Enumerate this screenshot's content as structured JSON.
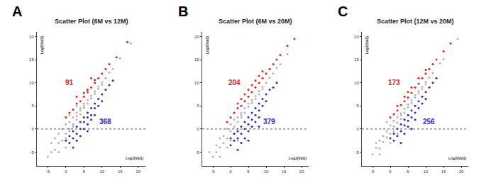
{
  "chart_data": [
    {
      "type": "scatter",
      "panel": "A",
      "title": "Scatter Plot (6M vs 12M)",
      "xlabel": "Log2(Val1)",
      "ylabel": "Log2(Val2)",
      "xlim": [
        -8,
        22
      ],
      "ylim": [
        -8,
        21
      ],
      "xticks": [
        -5,
        0,
        5,
        10,
        15,
        20
      ],
      "yticks": [
        -5,
        0,
        5,
        10,
        15,
        20
      ],
      "grid": false,
      "series": [
        {
          "color": "#b4b4b4",
          "marker": "circle",
          "x": [
            -4,
            -3,
            -3,
            -2,
            -2,
            -1,
            -1,
            0,
            0,
            0,
            1,
            1,
            1,
            2,
            2,
            2,
            3,
            3,
            3,
            4,
            4,
            4,
            5,
            5,
            5,
            6,
            6,
            7,
            7,
            8,
            8,
            9,
            9,
            10,
            10,
            11,
            12,
            13,
            15,
            18,
            -5,
            -4,
            -2,
            0,
            1,
            3
          ],
          "values": [
            -5,
            -2,
            -4.5,
            -1,
            -3,
            0,
            -2.5,
            1,
            -1,
            -2,
            1.5,
            0,
            -0.5,
            2.5,
            1,
            0.5,
            3.5,
            2,
            2.8,
            4.5,
            3.2,
            4,
            5.5,
            4.6,
            5,
            6.3,
            5.5,
            7.2,
            6.6,
            8.1,
            7.6,
            9.2,
            8.7,
            10.1,
            9.6,
            11,
            12.2,
            13,
            15.3,
            18.5,
            -6,
            -3,
            -5,
            -4,
            3,
            5
          ]
        },
        {
          "color": "#e8211d",
          "marker": "circle",
          "x": [
            0,
            1,
            2,
            3,
            4,
            5,
            5,
            6,
            6,
            7,
            8,
            8,
            9,
            10,
            11,
            12,
            14,
            17,
            3,
            7
          ],
          "values": [
            2.5,
            3.5,
            4.2,
            5.5,
            6,
            7,
            7.8,
            8,
            8.5,
            9,
            10,
            10.6,
            11,
            12,
            13,
            14,
            15.5,
            18.8,
            7,
            11
          ]
        },
        {
          "color": "#2a2ad0",
          "marker": "circle",
          "x": [
            0,
            1,
            1,
            2,
            2,
            3,
            3,
            3,
            4,
            4,
            4,
            5,
            5,
            5,
            6,
            6,
            6,
            7,
            7,
            7,
            8,
            8,
            8,
            9,
            9,
            10,
            10,
            11,
            12,
            13,
            2,
            6
          ],
          "values": [
            -2.5,
            -1.5,
            -3,
            -0.5,
            -2,
            0.5,
            -1,
            -2.5,
            1.5,
            0,
            -1.5,
            2.5,
            1.5,
            0,
            3.5,
            2.5,
            1,
            4.5,
            3,
            2,
            5.5,
            4.5,
            3,
            6.5,
            5,
            7.5,
            6,
            8.5,
            9.5,
            10.5,
            -4,
            -0.5
          ]
        },
        {
          "type": "line",
          "line_style": "dotted",
          "color": "#555555",
          "x": [
            -8,
            22
          ],
          "values": [
            0,
            0
          ]
        }
      ],
      "annotations": [
        {
          "text": "91",
          "color": "#e8211d"
        },
        {
          "text": "368",
          "color": "#2a2ad0"
        }
      ]
    },
    {
      "type": "scatter",
      "panel": "B",
      "title": "Scatter Plot (6M vs 20M)",
      "xlabel": "Log2(Val1)",
      "ylabel": "Log2(Val2)",
      "xlim": [
        -8,
        22
      ],
      "ylim": [
        -8,
        21
      ],
      "xticks": [
        -5,
        0,
        5,
        10,
        15,
        20
      ],
      "yticks": [
        -5,
        0,
        5,
        10,
        15,
        20
      ],
      "grid": false,
      "series": [
        {
          "color": "#b4b4b4",
          "marker": "circle",
          "x": [
            -5,
            -4,
            -4,
            -3,
            -3,
            -2,
            -2,
            -1,
            -1,
            0,
            0,
            0,
            1,
            1,
            1,
            2,
            2,
            2,
            3,
            3,
            3,
            4,
            4,
            5,
            5,
            6,
            6,
            7,
            7,
            8,
            8,
            9,
            9,
            10,
            11,
            12,
            13,
            14,
            16,
            -6,
            -3,
            -1,
            1,
            2,
            4
          ],
          "values": [
            -6,
            -3.5,
            -5,
            -2,
            -4,
            -1.5,
            -3,
            0,
            -2,
            1,
            -0.5,
            -2.5,
            2,
            0.5,
            -1,
            2.5,
            1.5,
            0,
            3.5,
            2.5,
            3,
            4.5,
            3.5,
            5.5,
            4.8,
            6.2,
            5.6,
            7.1,
            6.5,
            8.2,
            7.5,
            9.1,
            8.6,
            10,
            11.1,
            12,
            13.2,
            14,
            16.2,
            -5,
            -6,
            -4,
            3.5,
            -2.5,
            6
          ]
        },
        {
          "color": "#e8211d",
          "marker": "circle",
          "x": [
            -1,
            0,
            1,
            2,
            2,
            3,
            3,
            4,
            4,
            5,
            5,
            6,
            6,
            7,
            7,
            8,
            8,
            9,
            9,
            10,
            11,
            12,
            13,
            14,
            16,
            18
          ],
          "values": [
            1.5,
            2.5,
            3.5,
            4.5,
            5.5,
            5,
            6.5,
            6,
            7.5,
            7,
            8.5,
            8,
            9.5,
            9,
            10.5,
            10,
            11.5,
            11,
            12.5,
            12,
            13,
            14,
            15,
            16,
            18,
            19.5
          ]
        },
        {
          "color": "#2a2ad0",
          "marker": "circle",
          "x": [
            0,
            0,
            1,
            1,
            2,
            2,
            3,
            3,
            3,
            4,
            4,
            4,
            5,
            5,
            5,
            6,
            6,
            6,
            7,
            7,
            7,
            8,
            8,
            8,
            9,
            9,
            10,
            10,
            11,
            12,
            13,
            2,
            5,
            8
          ],
          "values": [
            -2,
            -3.5,
            -1,
            -2.5,
            -0.5,
            -2,
            0.5,
            -1,
            -3,
            1.5,
            0,
            -2,
            2.5,
            1,
            -0.5,
            3.5,
            2,
            0.5,
            4.5,
            3,
            1.5,
            5.5,
            4,
            2.5,
            6.5,
            5,
            7.5,
            6,
            8.5,
            9,
            10,
            -4.5,
            -2.5,
            0.5
          ]
        },
        {
          "type": "line",
          "line_style": "dotted",
          "color": "#555555",
          "x": [
            -8,
            22
          ],
          "values": [
            0,
            0
          ]
        }
      ],
      "annotations": [
        {
          "text": "204",
          "color": "#e8211d"
        },
        {
          "text": "379",
          "color": "#2a2ad0"
        }
      ]
    },
    {
      "type": "scatter",
      "panel": "C",
      "title": "Scatter Plot (12M vs 20M)",
      "xlabel": "Log2(Val1)",
      "ylabel": "Log2(Val2)",
      "xlim": [
        -8,
        22
      ],
      "ylim": [
        -8,
        21
      ],
      "xticks": [
        -5,
        0,
        5,
        10,
        15,
        20
      ],
      "yticks": [
        -5,
        0,
        5,
        10,
        15,
        20
      ],
      "grid": false,
      "series": [
        {
          "color": "#b4b4b4",
          "marker": "circle",
          "x": [
            -5,
            -4,
            -4,
            -3,
            -3,
            -2,
            -2,
            -1,
            -1,
            0,
            0,
            1,
            1,
            1,
            2,
            2,
            3,
            3,
            3,
            4,
            4,
            5,
            5,
            6,
            6,
            7,
            7,
            8,
            8,
            9,
            9,
            10,
            10,
            11,
            12,
            14,
            15,
            19,
            -3,
            -1,
            0,
            2,
            4
          ],
          "values": [
            -5.5,
            -4,
            -3,
            -2.5,
            -4.2,
            -1.5,
            -2.8,
            -0.5,
            -1.8,
            0.8,
            -1,
            1.8,
            0.5,
            -0.5,
            2.6,
            1.4,
            3.4,
            2.2,
            3,
            4.4,
            3.5,
            5.3,
            4.7,
            6.2,
            5.6,
            7.3,
            6.8,
            8.2,
            7.7,
            9.1,
            8.6,
            10.2,
            9.7,
            11.1,
            12.1,
            14.2,
            15.1,
            19.5,
            -5.5,
            1.5,
            -3,
            -1,
            2
          ]
        },
        {
          "color": "#e8211d",
          "marker": "circle",
          "x": [
            0,
            1,
            2,
            2,
            3,
            4,
            4,
            5,
            5,
            6,
            6,
            7,
            8,
            8,
            9,
            10,
            10,
            11,
            12,
            13,
            15,
            17
          ],
          "values": [
            2.5,
            3.2,
            4,
            5,
            5.2,
            6,
            7,
            6.8,
            8,
            7.8,
            9,
            9,
            9.8,
            11,
            11,
            12,
            12.8,
            13,
            14,
            15,
            16.8,
            18.5
          ]
        },
        {
          "color": "#2a2ad0",
          "marker": "circle",
          "x": [
            0,
            1,
            1,
            2,
            2,
            3,
            3,
            4,
            4,
            4,
            5,
            5,
            5,
            6,
            6,
            7,
            7,
            7,
            8,
            8,
            9,
            9,
            10,
            10,
            11,
            12,
            13,
            3,
            6
          ],
          "values": [
            -2,
            -1,
            -2.5,
            0,
            -1.5,
            1,
            -0.5,
            2,
            0.8,
            -1,
            3,
            1.8,
            0.5,
            4,
            2.5,
            5,
            3.5,
            2,
            6,
            4.5,
            7,
            5.5,
            8,
            6.5,
            9,
            10,
            11,
            -3,
            0
          ]
        },
        {
          "type": "line",
          "line_style": "dotted",
          "color": "#555555",
          "x": [
            -8,
            22
          ],
          "values": [
            0,
            0
          ]
        }
      ],
      "annotations": [
        {
          "text": "173",
          "color": "#e8211d"
        },
        {
          "text": "256",
          "color": "#2a2ad0"
        }
      ]
    }
  ]
}
